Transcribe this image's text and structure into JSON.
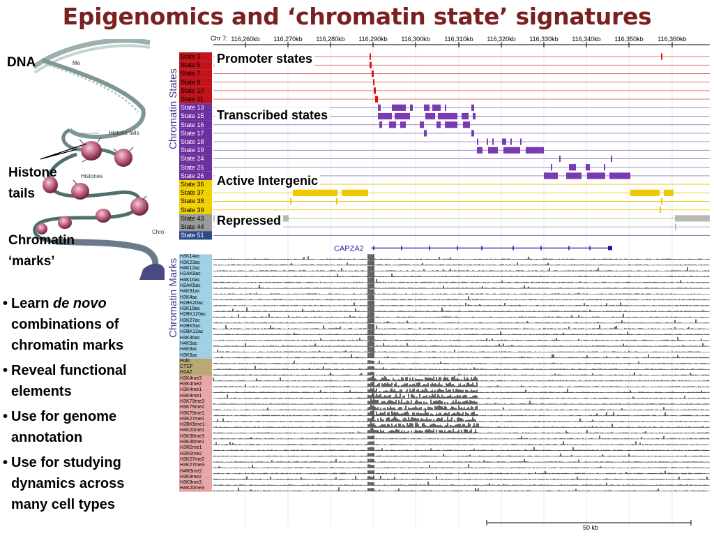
{
  "title": "Epigenomics and ‘chromatin state’ signatures",
  "illustration": {
    "labels": {
      "dna": "DNA",
      "histone": "Histone",
      "tails": "tails",
      "chromatin": "Chromatin",
      "marks": "‘marks’"
    },
    "small_labels": {
      "me": "Me",
      "histone_tails": "Histone tails",
      "histones": "Histones",
      "chr": "Chro"
    }
  },
  "bullets": [
    {
      "parts": [
        "Learn ",
        "de novo",
        " combinations of chromatin marks"
      ]
    },
    {
      "text": "Reveal functional elements"
    },
    {
      "text": "Use for genome annotation"
    },
    {
      "text": "Use for studying dynamics across many cell types"
    }
  ],
  "browser": {
    "chrom_label": "Chr 7:",
    "coordinates": [
      "116,260kb",
      "116,270kb",
      "116,280kb",
      "116,290kb",
      "116,300kb",
      "116,310kb",
      "116,320kb",
      "116,330kb",
      "116,340kb",
      "116,350kb",
      "116,360kb"
    ],
    "group_labels": {
      "states": "Chromatin States",
      "marks": "Chromatin Marks"
    },
    "gene": "CAPZA2",
    "scale_label": "50 kb",
    "overlays": {
      "promoter": "Promoter states",
      "transcribed": "Transcribed states",
      "intergenic": "Active Intergenic",
      "repressed": "Repressed"
    },
    "state_groups": [
      {
        "name": "promoter",
        "color": "#c0141a",
        "line": "#e06060",
        "states": [
          "State 3",
          "State 5",
          "State 7",
          "State 8",
          "State 10",
          "State 11"
        ]
      },
      {
        "name": "transcribed",
        "color": "#6b2fa0",
        "line": "#9a7ac4",
        "states": [
          "State 13",
          "State 15",
          "State 16",
          "State 17",
          "State 18",
          "State 19",
          "State 24",
          "State 25",
          "State 26"
        ]
      },
      {
        "name": "intergenic",
        "color": "#f0d000",
        "line": "#e8c800",
        "states": [
          "State 36",
          "State 37",
          "State 38",
          "State 39"
        ]
      },
      {
        "name": "repressed",
        "color": "#9a9a9a",
        "line": "#b0b0b0",
        "states": [
          "State 43",
          "State 44"
        ]
      },
      {
        "name": "other",
        "color": "#2a4a8a",
        "line": "#4a6aa0",
        "states": [
          "State 51"
        ]
      }
    ],
    "mark_groups": [
      {
        "name": "acetylation",
        "color": "#9fd0e6",
        "marks": [
          "H3K14ac",
          "H3K23ac",
          "H4K12ac",
          "H2AK9ac",
          "H4K16ac",
          "H2AK5ac",
          "H4K91ac",
          "H3K4ac",
          "H2BK20ac",
          "H3K18ac",
          "H2BK120ac",
          "H3K27ac",
          "H2BK5ac",
          "H2BK12ac",
          "H3K36ac",
          "H4K5ac",
          "H4K8ac",
          "H3K9ac"
        ]
      },
      {
        "name": "other",
        "color": "#b8a874",
        "marks": [
          "PolII",
          "CTCF",
          "H2AZ"
        ]
      },
      {
        "name": "methylation",
        "color": "#e6a6a6",
        "marks": [
          "H3K4me3",
          "H3K4me2",
          "H3K4me1",
          "H3K9me1",
          "H3K79me3",
          "H3K79me2",
          "H3K79me1",
          "H3K27me1",
          "H2BK5me1",
          "H4K20me1",
          "H3K36me3",
          "H3K36me1",
          "H3R2me1",
          "H3R2me2",
          "H3K27me2",
          "H3K27me3",
          "H4R3me2",
          "H3K9me2",
          "H3K9me3",
          "H4K20me3"
        ]
      }
    ]
  }
}
